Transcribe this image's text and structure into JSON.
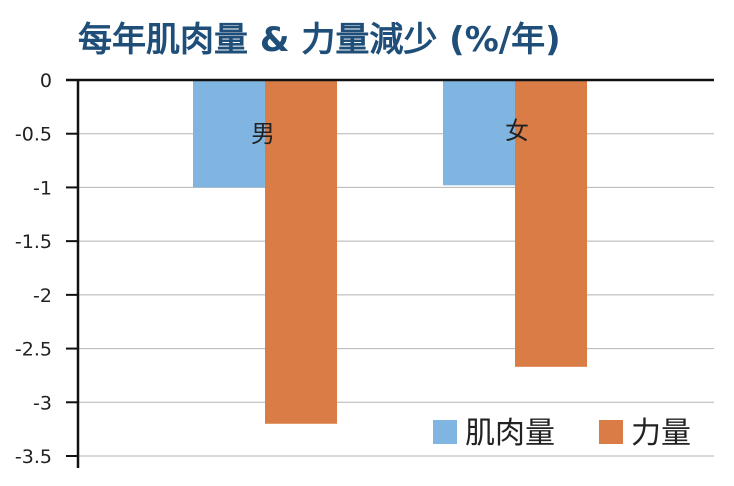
{
  "title": "每年肌肉量 & 力量減少 (%/年)",
  "colors": {
    "title": "#1f4e79",
    "grid": "#b5b5b5",
    "axis": "#111111"
  },
  "chart_data": {
    "type": "bar",
    "categories": [
      "男",
      "女"
    ],
    "series": [
      {
        "name": "肌肉量",
        "values": [
          -1.0,
          -0.98
        ],
        "color": "#7fb5e0"
      },
      {
        "name": "力量",
        "values": [
          -3.2,
          -2.67
        ],
        "color": "#d97c45"
      }
    ],
    "yticks": [
      "0",
      "-0.5",
      "-1",
      "-1.5",
      "-2",
      "-2.5",
      "-3",
      "-3.5"
    ],
    "ylim": [
      -3.5,
      0
    ],
    "grid": true,
    "legend_position": "bottom-right"
  }
}
